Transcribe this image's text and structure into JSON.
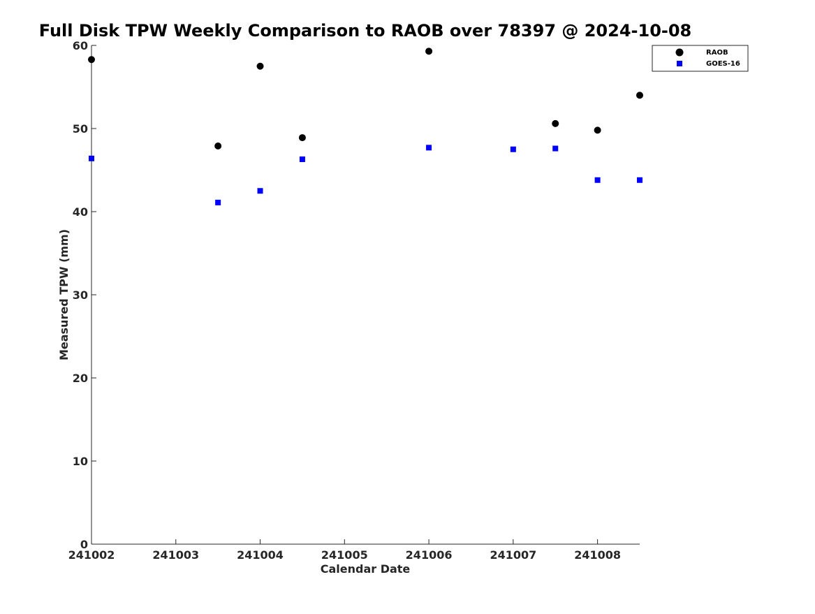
{
  "chart_data": {
    "type": "scatter",
    "title": "Full Disk TPW Weekly Comparison to RAOB over 78397 @ 2024-10-08",
    "xlabel": "Calendar Date",
    "ylabel": "Measured TPW (mm)",
    "x_categories": [
      "241002",
      "241003",
      "241004",
      "241005",
      "241006",
      "241007",
      "241008"
    ],
    "xlim": [
      241002,
      241008.5
    ],
    "ylim": [
      0,
      60
    ],
    "yticks": [
      "0",
      "10",
      "20",
      "30",
      "40",
      "50",
      "60"
    ],
    "grid": false,
    "legend_position": "top-right",
    "series": [
      {
        "name": "RAOB",
        "marker": "circle",
        "color": "#000000",
        "points": [
          {
            "x": 241002.0,
            "y": 58.3
          },
          {
            "x": 241003.5,
            "y": 47.9
          },
          {
            "x": 241004.0,
            "y": 57.5
          },
          {
            "x": 241004.5,
            "y": 48.9
          },
          {
            "x": 241006.0,
            "y": 59.3
          },
          {
            "x": 241007.5,
            "y": 50.6
          },
          {
            "x": 241008.0,
            "y": 49.8
          },
          {
            "x": 241008.5,
            "y": 54.0
          }
        ]
      },
      {
        "name": "GOES-16",
        "marker": "square",
        "color": "#0000ff",
        "points": [
          {
            "x": 241002.0,
            "y": 46.4
          },
          {
            "x": 241003.5,
            "y": 41.1
          },
          {
            "x": 241004.0,
            "y": 42.5
          },
          {
            "x": 241004.5,
            "y": 46.3
          },
          {
            "x": 241006.0,
            "y": 47.7
          },
          {
            "x": 241007.0,
            "y": 47.5
          },
          {
            "x": 241007.5,
            "y": 47.6
          },
          {
            "x": 241008.0,
            "y": 43.8
          },
          {
            "x": 241008.5,
            "y": 43.8
          }
        ]
      }
    ]
  }
}
